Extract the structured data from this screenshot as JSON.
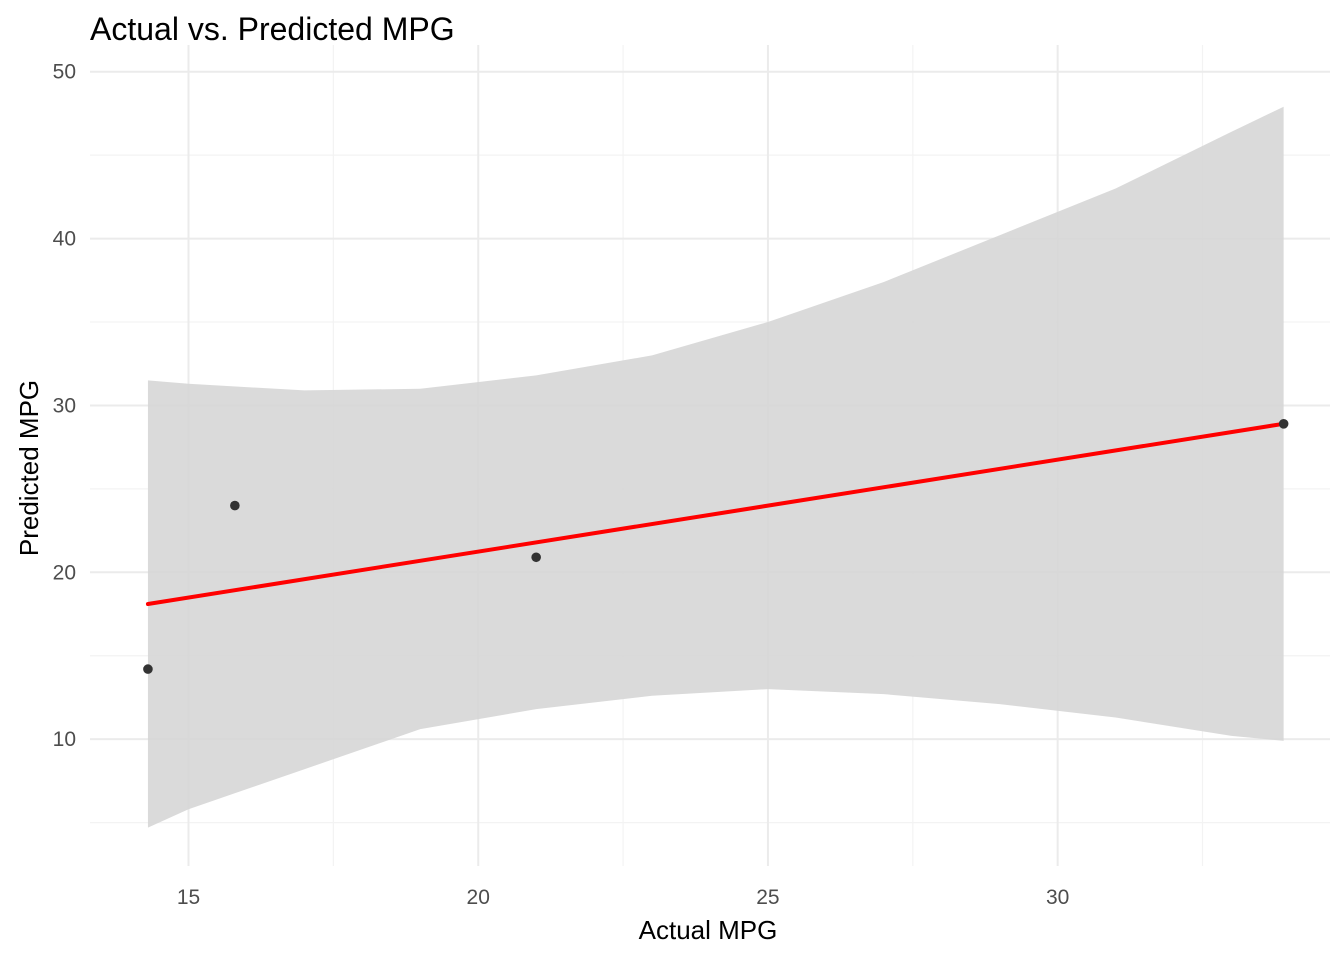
{
  "chart_data": {
    "type": "scatter",
    "title": "Actual vs. Predicted MPG",
    "xlabel": "Actual MPG",
    "ylabel": "Predicted MPG",
    "xlim": [
      13.3,
      34.7
    ],
    "ylim": [
      2.4,
      51.6
    ],
    "x_ticks": [
      15,
      20,
      25,
      30
    ],
    "y_ticks": [
      10,
      20,
      30,
      40,
      50
    ],
    "x_tick_labels": [
      "15",
      "20",
      "25",
      "30"
    ],
    "y_tick_labels": [
      "10",
      "20",
      "30",
      "40",
      "50"
    ],
    "grid": true,
    "series": [
      {
        "type": "points",
        "x": [
          14.3,
          15.8,
          21.0,
          33.9
        ],
        "y": [
          14.2,
          24.0,
          20.9,
          28.9
        ],
        "color": "#333333"
      }
    ],
    "fit": {
      "method": "linear",
      "color": "#ff0000",
      "x": [
        14.3,
        33.9
      ],
      "y": [
        18.1,
        28.9
      ]
    },
    "confidence_band": {
      "color": "#d6d6d6",
      "x": [
        14.3,
        15,
        17,
        19,
        21,
        23,
        25,
        27,
        29,
        31,
        33,
        33.9
      ],
      "upper": [
        31.5,
        31.3,
        30.9,
        31.0,
        31.8,
        33.0,
        35.0,
        37.4,
        40.2,
        43.0,
        46.4,
        47.9
      ],
      "lower": [
        4.7,
        5.8,
        8.2,
        10.6,
        11.8,
        12.6,
        13.0,
        12.7,
        12.1,
        11.3,
        10.2,
        9.9
      ]
    }
  }
}
